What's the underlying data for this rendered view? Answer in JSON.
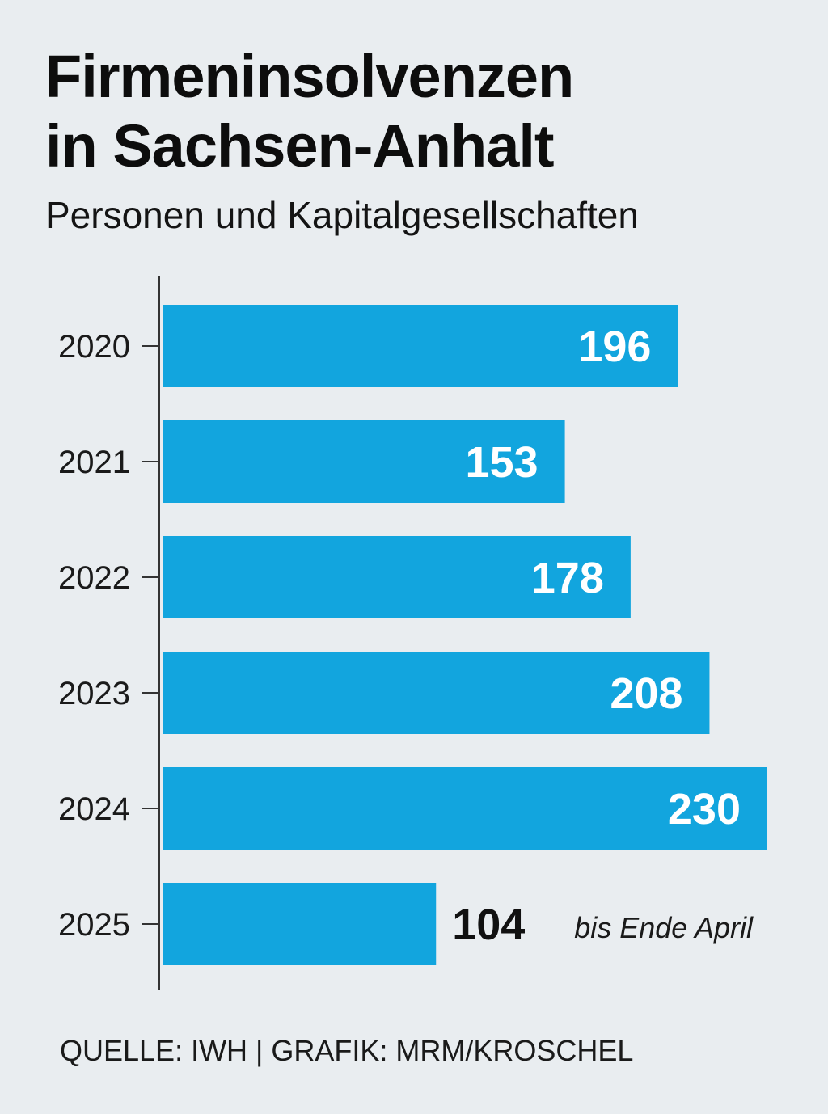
{
  "title_lines": [
    "Firmeninsolvenzen",
    "in Sachsen-Anhalt"
  ],
  "subtitle": "Personen und Kapitalgesellschaften",
  "source": "QUELLE: IWH | GRAFIK: MRM/KROSCHEL",
  "colors": {
    "background": "#e9edf0",
    "bar": "#12a5de",
    "label_inside": "#ffffff",
    "label_outside": "#111111",
    "axis": "#333333"
  },
  "chart_data": {
    "type": "bar",
    "orientation": "horizontal",
    "categories": [
      "2020",
      "2021",
      "2022",
      "2023",
      "2024",
      "2025"
    ],
    "values": [
      196,
      153,
      178,
      208,
      230,
      104
    ],
    "value_labels": [
      "196",
      "153",
      "178",
      "208",
      "230",
      "104"
    ],
    "label_inside": [
      true,
      true,
      true,
      true,
      true,
      false
    ],
    "annotations": [
      {
        "category": "2025",
        "text": "bis Ende April"
      }
    ],
    "xlim": [
      0,
      230
    ],
    "grid": false,
    "legend": "none"
  }
}
